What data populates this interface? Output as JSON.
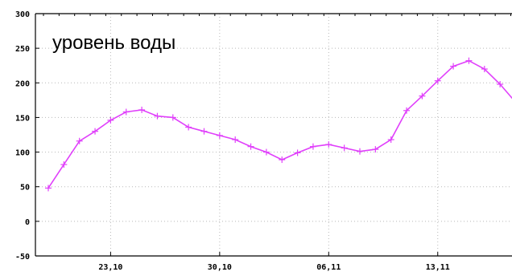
{
  "chart_data": {
    "type": "line",
    "annotation": "уровень воды",
    "ylim": [
      -50,
      300
    ],
    "y_ticks": [
      {
        "value": 300,
        "label": "300"
      },
      {
        "value": 250,
        "label": "250"
      },
      {
        "value": 200,
        "label": "200"
      },
      {
        "value": 150,
        "label": "150"
      },
      {
        "value": 100,
        "label": "100"
      },
      {
        "value": 50,
        "label": "50"
      },
      {
        "value": 0,
        "label": "0"
      },
      {
        "value": -50,
        "label": "-50"
      }
    ],
    "x_ticks": [
      {
        "label": "23,10",
        "index": 4
      },
      {
        "label": "30,10",
        "index": 11
      },
      {
        "label": "06,11",
        "index": 18
      },
      {
        "label": "13,11",
        "index": 25
      }
    ],
    "x": [
      "19.10",
      "20.10",
      "21.10",
      "22.10",
      "23.10",
      "24.10",
      "25.10",
      "26.10",
      "27.10",
      "28.10",
      "29.10",
      "30.10",
      "31.10",
      "01.11",
      "02.11",
      "03.11",
      "04.11",
      "05.11",
      "06.11",
      "07.11",
      "08.11",
      "09.11",
      "10.11",
      "11.11",
      "12.11",
      "13.11",
      "14.11",
      "15.11",
      "16.11",
      "17.11",
      "18.11"
    ],
    "series": [
      {
        "color": "#e040fb",
        "values": [
          48,
          82,
          116,
          130,
          146,
          158,
          161,
          152,
          150,
          136,
          130,
          124,
          118,
          108,
          100,
          89,
          99,
          108,
          111,
          106,
          101,
          104,
          118,
          160,
          181,
          203,
          224,
          232,
          220,
          198,
          172
        ]
      }
    ],
    "grid": true,
    "grid_style": "dotted"
  }
}
